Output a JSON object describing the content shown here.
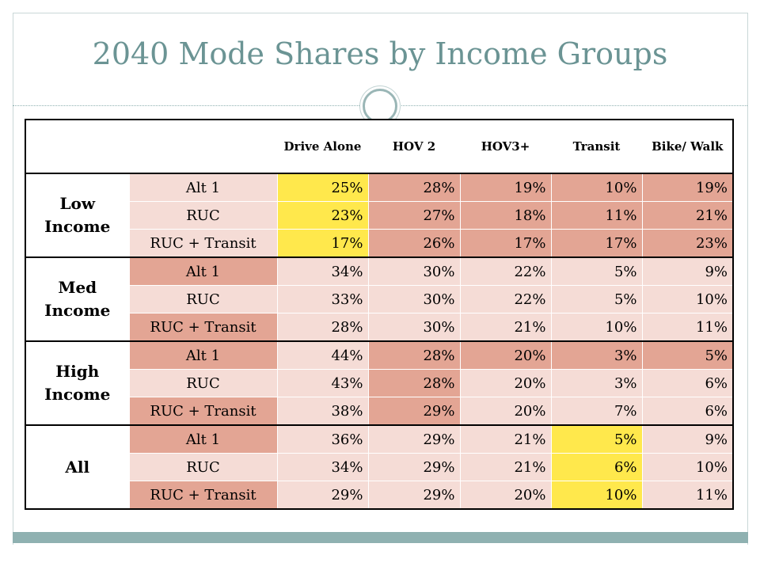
{
  "title": "2040 Mode Shares by Income Groups",
  "colors": {
    "dark": "#e3a594",
    "light": "#f5dcd6",
    "highlight": "#ffe84c",
    "title": "#6b9494",
    "accent_band": "#8fb1b1"
  },
  "table": {
    "headers": [
      "Drive Alone",
      "HOV 2",
      "HOV3+",
      "Transit",
      "Bike/ Walk"
    ],
    "groups": [
      {
        "label": "Low Income",
        "rows": [
          {
            "scenario": "Alt 1",
            "values": [
              "25%",
              "28%",
              "19%",
              "10%",
              "19%"
            ]
          },
          {
            "scenario": "RUC",
            "values": [
              "23%",
              "27%",
              "18%",
              "11%",
              "21%"
            ]
          },
          {
            "scenario": "RUC + Transit",
            "values": [
              "17%",
              "26%",
              "17%",
              "17%",
              "23%"
            ]
          }
        ]
      },
      {
        "label": "Med Income",
        "rows": [
          {
            "scenario": "Alt 1",
            "values": [
              "34%",
              "30%",
              "22%",
              "5%",
              "9%"
            ]
          },
          {
            "scenario": "RUC",
            "values": [
              "33%",
              "30%",
              "22%",
              "5%",
              "10%"
            ]
          },
          {
            "scenario": "RUC + Transit",
            "values": [
              "28%",
              "30%",
              "21%",
              "10%",
              "11%"
            ]
          }
        ]
      },
      {
        "label": "High Income",
        "rows": [
          {
            "scenario": "Alt 1",
            "values": [
              "44%",
              "28%",
              "20%",
              "3%",
              "5%"
            ]
          },
          {
            "scenario": "RUC",
            "values": [
              "43%",
              "28%",
              "20%",
              "3%",
              "6%"
            ]
          },
          {
            "scenario": "RUC + Transit",
            "values": [
              "38%",
              "29%",
              "20%",
              "7%",
              "6%"
            ]
          }
        ]
      },
      {
        "label": "All",
        "rows": [
          {
            "scenario": "Alt 1",
            "values": [
              "36%",
              "29%",
              "21%",
              "5%",
              "9%"
            ]
          },
          {
            "scenario": "RUC",
            "values": [
              "34%",
              "29%",
              "21%",
              "6%",
              "10%"
            ]
          },
          {
            "scenario": "RUC + Transit",
            "values": [
              "29%",
              "29%",
              "20%",
              "10%",
              "11%"
            ]
          }
        ]
      }
    ],
    "highlighted_cells": [
      {
        "group": 0,
        "row": 0,
        "col": 0
      },
      {
        "group": 0,
        "row": 1,
        "col": 0
      },
      {
        "group": 0,
        "row": 2,
        "col": 0
      },
      {
        "group": 3,
        "row": 0,
        "col": 3
      },
      {
        "group": 3,
        "row": 1,
        "col": 3
      },
      {
        "group": 3,
        "row": 2,
        "col": 3
      }
    ]
  }
}
